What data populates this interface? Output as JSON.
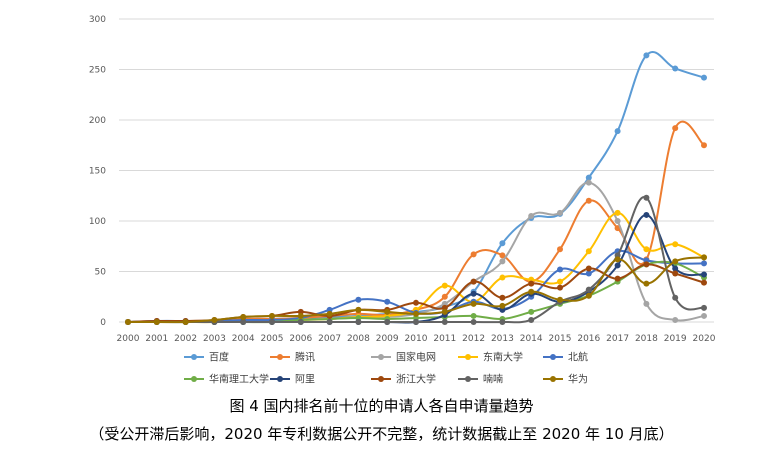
{
  "caption": {
    "title": "图 4  国内排名前十位的申请人各自申请量趋势",
    "note": "（受公开滞后影响，2020 年专利数据公开不完整，统计数据截止至 2020 年 10 月底）"
  },
  "chart_data": {
    "type": "line",
    "smooth": true,
    "markers": true,
    "grid": "horizontal",
    "legend_position": "bottom",
    "ylim": [
      0,
      300
    ],
    "yticks": [
      0,
      50,
      100,
      150,
      200,
      250,
      300
    ],
    "categories": [
      "2000",
      "2001",
      "2002",
      "2003",
      "2004",
      "2005",
      "2006",
      "2007",
      "2008",
      "2009",
      "2010",
      "2011",
      "2012",
      "2013",
      "2014",
      "2015",
      "2016",
      "2017",
      "2018",
      "2019",
      "2020"
    ],
    "series": [
      {
        "name": "百度",
        "color": "#5B9BD5",
        "values": [
          0,
          0,
          0,
          1,
          2,
          3,
          4,
          5,
          6,
          8,
          10,
          15,
          30,
          78,
          103,
          107,
          143,
          189,
          264,
          251,
          242
        ]
      },
      {
        "name": "腾讯",
        "color": "#ED7D31",
        "values": [
          0,
          1,
          0,
          1,
          3,
          3,
          4,
          6,
          8,
          7,
          12,
          25,
          67,
          66,
          40,
          72,
          120,
          93,
          62,
          192,
          175
        ]
      },
      {
        "name": "国家电网",
        "color": "#A5A5A5",
        "values": [
          0,
          0,
          0,
          0,
          1,
          2,
          2,
          3,
          5,
          5,
          8,
          18,
          40,
          60,
          105,
          108,
          138,
          100,
          18,
          2,
          6
        ]
      },
      {
        "name": "东南大学",
        "color": "#FFC000",
        "values": [
          0,
          0,
          0,
          0,
          1,
          1,
          2,
          3,
          5,
          6,
          12,
          36,
          20,
          44,
          42,
          40,
          70,
          108,
          72,
          77,
          64
        ]
      },
      {
        "name": "北航",
        "color": "#4472C4",
        "values": [
          0,
          1,
          1,
          1,
          2,
          2,
          4,
          12,
          22,
          20,
          9,
          10,
          20,
          13,
          25,
          52,
          48,
          70,
          61,
          58,
          58
        ]
      },
      {
        "name": "华南理工大学",
        "color": "#70AD47",
        "values": [
          0,
          0,
          0,
          0,
          0,
          0,
          2,
          3,
          4,
          3,
          4,
          5,
          6,
          3,
          10,
          18,
          26,
          40,
          57,
          58,
          44
        ]
      },
      {
        "name": "阿里",
        "color": "#264478",
        "values": [
          0,
          0,
          0,
          0,
          0,
          0,
          0,
          0,
          0,
          0,
          0,
          7,
          28,
          12,
          28,
          20,
          30,
          56,
          106,
          53,
          47
        ]
      },
      {
        "name": "浙江大学",
        "color": "#9E480E",
        "values": [
          0,
          1,
          1,
          2,
          5,
          6,
          10,
          6,
          12,
          12,
          19,
          14,
          40,
          24,
          38,
          34,
          53,
          43,
          57,
          48,
          39
        ]
      },
      {
        "name": "喃喃",
        "color": "#636363",
        "values": [
          0,
          0,
          0,
          0,
          0,
          0,
          0,
          0,
          0,
          0,
          0,
          0,
          0,
          0,
          2,
          20,
          32,
          66,
          123,
          24,
          14
        ]
      },
      {
        "name": "华为",
        "color": "#997300",
        "values": [
          0,
          0,
          0,
          2,
          5,
          6,
          6,
          8,
          12,
          10,
          8,
          10,
          18,
          16,
          30,
          22,
          26,
          62,
          38,
          60,
          64
        ]
      }
    ]
  }
}
